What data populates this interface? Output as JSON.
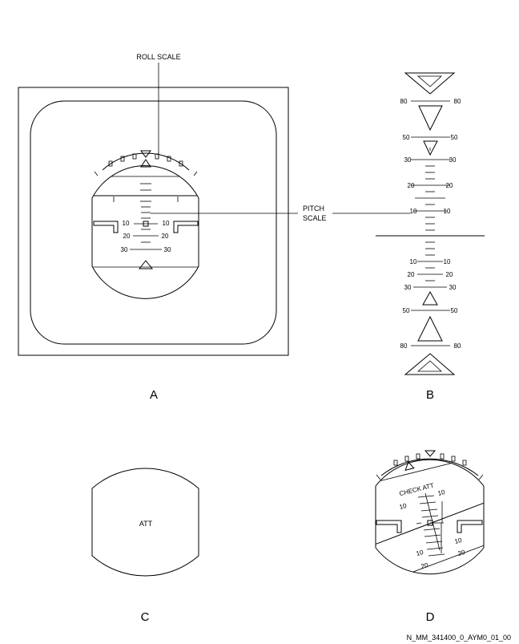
{
  "callouts": {
    "roll_scale": "ROLL SCALE",
    "pitch_line1": "PITCH",
    "pitch_line2": "SCALE"
  },
  "panels": {
    "a": "A",
    "b": "B",
    "c": "C",
    "d": "D"
  },
  "panel_c": {
    "flag": "ATT"
  },
  "panel_d": {
    "flag": "CHECK ATT"
  },
  "pitch_values": {
    "p80": "80",
    "p50": "50",
    "p30": "30",
    "p20": "20",
    "p10": "10"
  },
  "footer": {
    "code": "N_MM_341400_0_AYM0_01_00"
  }
}
